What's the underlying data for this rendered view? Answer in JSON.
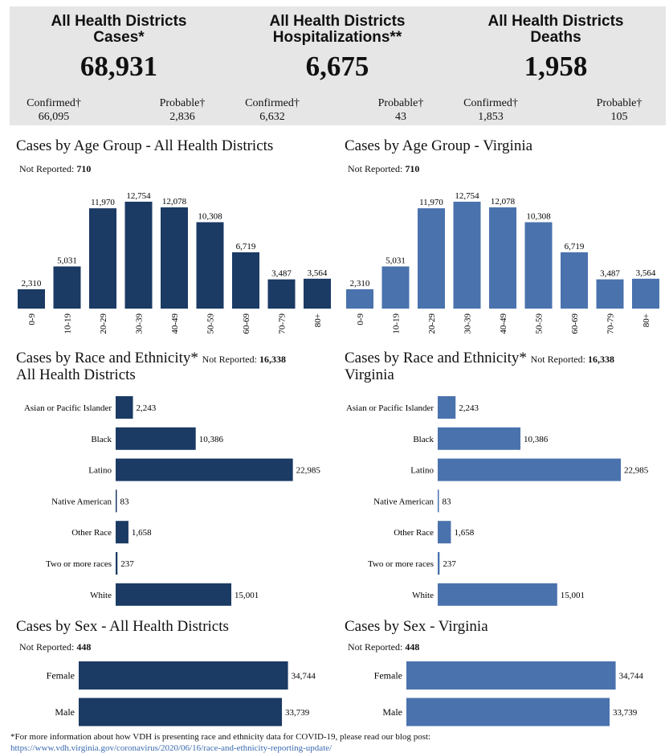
{
  "colors": {
    "dark": "#1b3a64",
    "light": "#4a72ad",
    "panel": "#e6e6e6"
  },
  "summary": [
    {
      "title1": "All Health Districts",
      "title2": "Cases*",
      "total": "68,931",
      "confirmed_label": "Confirmed†",
      "confirmed": "66,095",
      "probable_label": "Probable†",
      "probable": "2,836"
    },
    {
      "title1": "All Health Districts",
      "title2": "Hospitalizations**",
      "total": "6,675",
      "confirmed_label": "Confirmed†",
      "confirmed": "6,632",
      "probable_label": "Probable†",
      "probable": "43"
    },
    {
      "title1": "All Health Districts",
      "title2": "Deaths",
      "total": "1,958",
      "confirmed_label": "Confirmed†",
      "confirmed": "1,853",
      "probable_label": "Probable†",
      "probable": "105"
    }
  ],
  "sections": {
    "age_left": "Cases by Age Group - All Health Districts",
    "age_right": "Cases by Age Group - Virginia",
    "race_left_1": "Cases by Race and Ethnicity*",
    "race_left_2": "All Health Districts",
    "race_right_1": "Cases by Race and Ethnicity*",
    "race_right_2": "Virginia",
    "sex_left": "Cases by Sex - All Health Districts",
    "sex_right": "Cases by Sex - Virginia"
  },
  "not_reported_label": "Not Reported:",
  "not_reported": {
    "age": "710",
    "race": "16,338",
    "sex": "448"
  },
  "chart_data": [
    {
      "id": "age",
      "type": "bar",
      "orientation": "vertical",
      "categories": [
        "0-9",
        "10-19",
        "20-29",
        "30-39",
        "40-49",
        "50-59",
        "60-69",
        "70-79",
        "80+"
      ],
      "values": [
        2310,
        5031,
        11970,
        12754,
        12078,
        10308,
        6719,
        3487,
        3564
      ],
      "labels": [
        "2,310",
        "5,031",
        "11,970",
        "12,754",
        "12,078",
        "10,308",
        "6,719",
        "3,487",
        "3,564"
      ],
      "ylim": [
        0,
        14000
      ]
    },
    {
      "id": "race",
      "type": "bar",
      "orientation": "horizontal",
      "categories": [
        "Asian or Pacific Islander",
        "Black",
        "Latino",
        "Native American",
        "Other Race",
        "Two or more races",
        "White"
      ],
      "values": [
        2243,
        10386,
        22985,
        83,
        1658,
        237,
        15001
      ],
      "labels": [
        "2,243",
        "10,386",
        "22,985",
        "83",
        "1,658",
        "237",
        "15,001"
      ],
      "xlim": [
        0,
        25000
      ]
    },
    {
      "id": "sex",
      "type": "bar",
      "orientation": "horizontal",
      "categories": [
        "Female",
        "Male"
      ],
      "values": [
        34744,
        33739
      ],
      "labels": [
        "34,744",
        "33,739"
      ],
      "xlim": [
        0,
        38000
      ]
    }
  ],
  "footnote": "*For more information about how VDH is presenting race and ethnicity data for COVID-19, please read our blog post:",
  "footnote_link": "https://www.vdh.virginia.gov/coronavirus/2020/06/16/race-and-ethnicity-reporting-update/"
}
